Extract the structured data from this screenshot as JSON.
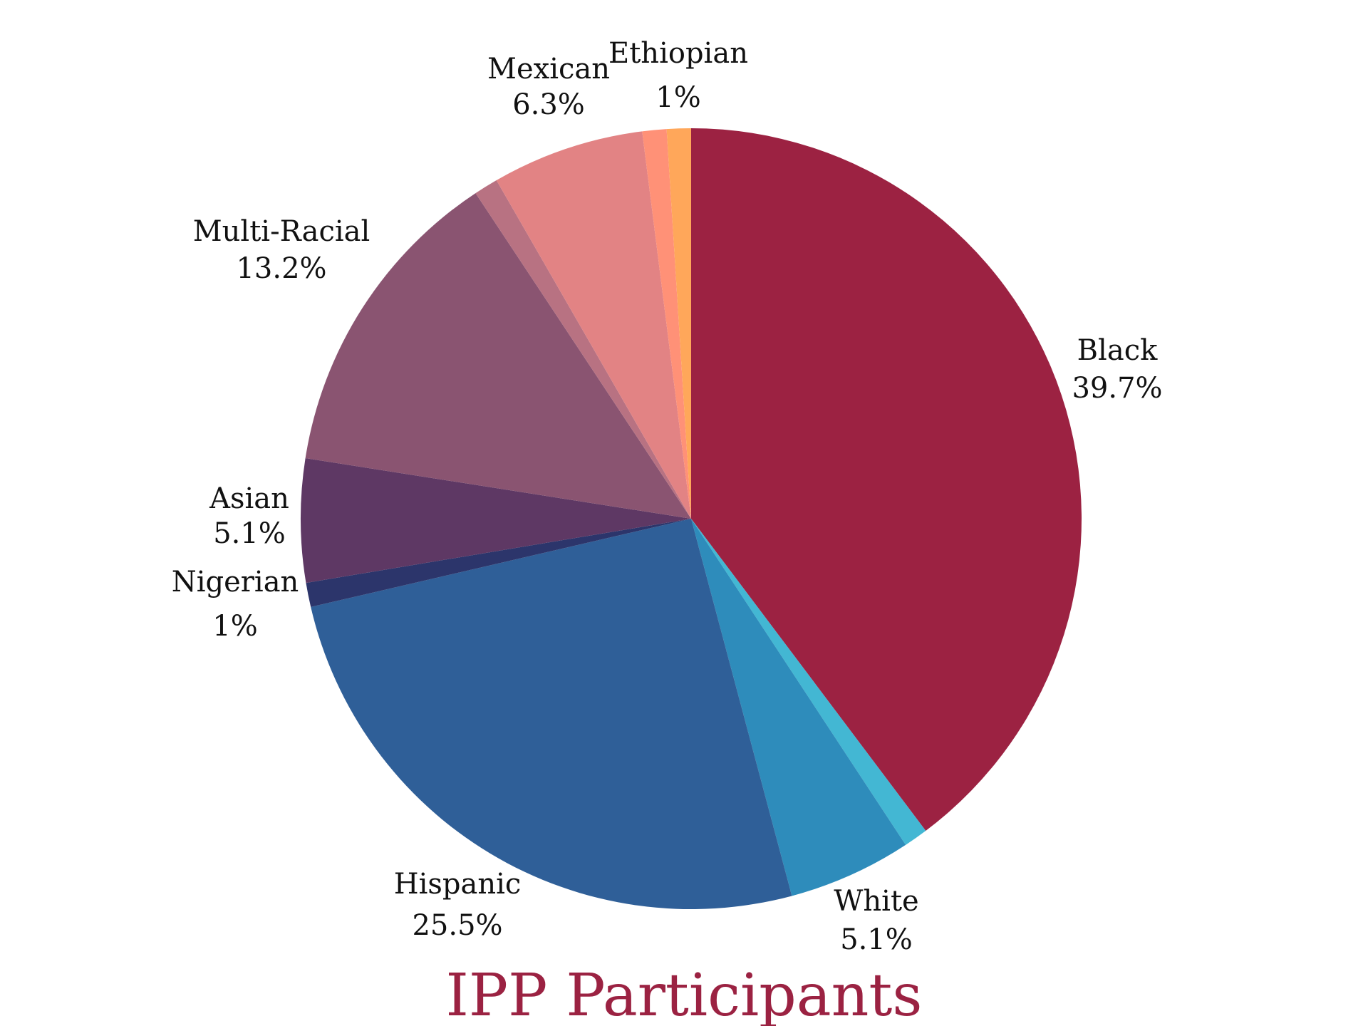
{
  "chart_data": {
    "type": "pie",
    "title": "IPP Participants",
    "start": "12 o'clock",
    "direction": "clockwise",
    "slices": [
      {
        "label": "Black",
        "pct_label": "39.7%",
        "value": 39.7,
        "color": "#9c2242"
      },
      {
        "label": "",
        "pct_label": "",
        "value": 1.0,
        "color": "#43b7d3"
      },
      {
        "label": "White",
        "pct_label": "5.1%",
        "value": 5.1,
        "color": "#2e8cbb"
      },
      {
        "label": "Hispanic",
        "pct_label": "25.5%",
        "value": 25.5,
        "color": "#2f5f98"
      },
      {
        "label": "Nigerian",
        "pct_label": "1%",
        "value": 1.0,
        "color": "#2c356b"
      },
      {
        "label": "Asian",
        "pct_label": "5.1%",
        "value": 5.1,
        "color": "#5e3864"
      },
      {
        "label": "Multi-Racial",
        "pct_label": "13.2%",
        "value": 13.2,
        "color": "#8a5471"
      },
      {
        "label": "",
        "pct_label": "",
        "value": 1.0,
        "color": "#b87282"
      },
      {
        "label": "Mexican",
        "pct_label": "6.3%",
        "value": 6.3,
        "color": "#e28384"
      },
      {
        "label": "",
        "pct_label": "",
        "value": 1.0,
        "color": "#ff9177"
      },
      {
        "label": "Ethiopian",
        "pct_label": "1%",
        "value": 1.0,
        "color": "#ffa75a"
      }
    ]
  }
}
